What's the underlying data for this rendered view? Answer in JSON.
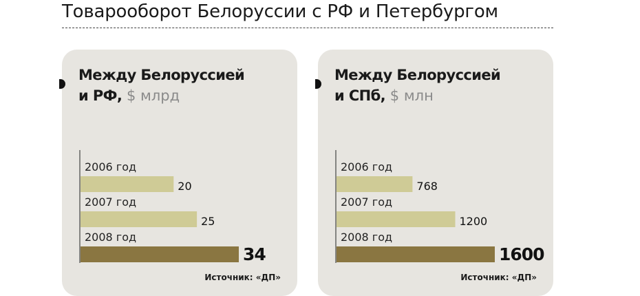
{
  "page": {
    "title": "Товарооборот Белоруссии с РФ и Петербургом"
  },
  "panels": [
    {
      "heading_line1": "Между Белоруссией",
      "heading_line2": "и РФ,",
      "unit": "$ млрд",
      "source": "Источник: «ДП»"
    },
    {
      "heading_line1": "Между Белоруссией",
      "heading_line2": "и СПб,",
      "unit": "$ млн",
      "source": "Источник: «ДП»"
    }
  ],
  "colors": {
    "bar_light": "#cfcb96",
    "bar_dark": "#8a7641",
    "panel_bg": "#e7e5e0"
  },
  "chart_data": [
    {
      "type": "bar",
      "orientation": "horizontal",
      "title": "Между Белоруссией и РФ, $ млрд",
      "categories": [
        "2006 год",
        "2007 год",
        "2008 год"
      ],
      "values": [
        20,
        25,
        34
      ],
      "value_labels": [
        "20",
        "25",
        "34"
      ],
      "highlight_index": 2,
      "xlim": [
        0,
        34
      ]
    },
    {
      "type": "bar",
      "orientation": "horizontal",
      "title": "Между Белоруссией и СПб, $ млн",
      "categories": [
        "2006 год",
        "2007 год",
        "2008 год"
      ],
      "values": [
        768,
        1200,
        1600
      ],
      "value_labels": [
        "768",
        "1200",
        "1600"
      ],
      "highlight_index": 2,
      "xlim": [
        0,
        1600
      ]
    }
  ]
}
